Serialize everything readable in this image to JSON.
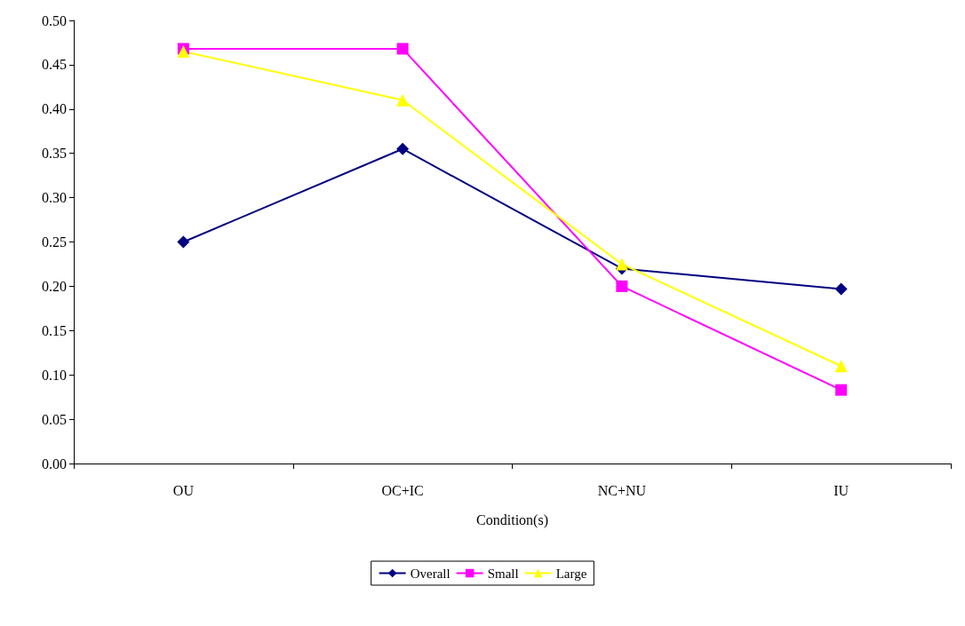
{
  "chart_data": {
    "type": "line",
    "xlabel": "Condition(s)",
    "categories": [
      "OU",
      "OC+IC",
      "NC+NU",
      "IU"
    ],
    "series": [
      {
        "name": "Overall",
        "color": "#000080",
        "marker": "diamond",
        "values": [
          0.25,
          0.355,
          0.22,
          0.197
        ]
      },
      {
        "name": "Small",
        "color": "#ff00ff",
        "marker": "square",
        "values": [
          0.468,
          0.468,
          0.2,
          0.083
        ]
      },
      {
        "name": "Large",
        "color": "#ffff00",
        "marker": "triangle",
        "values": [
          0.465,
          0.41,
          0.225,
          0.11
        ]
      }
    ],
    "ylim": [
      0,
      0.5
    ],
    "yticks": [
      {
        "value": 0,
        "label": "0.00"
      },
      {
        "value": 0.05,
        "label": "0.05"
      },
      {
        "value": 0.1,
        "label": "0.10"
      },
      {
        "value": 0.15,
        "label": "0.15"
      },
      {
        "value": 0.2,
        "label": "0.20"
      },
      {
        "value": 0.25,
        "label": "0.25"
      },
      {
        "value": 0.3,
        "label": "0.30"
      },
      {
        "value": 0.35,
        "label": "0.35"
      },
      {
        "value": 0.4,
        "label": "0.40"
      },
      {
        "value": 0.45,
        "label": "0.45"
      },
      {
        "value": 0.5,
        "label": "0.50"
      }
    ],
    "grid": false,
    "legend": "bottom"
  }
}
